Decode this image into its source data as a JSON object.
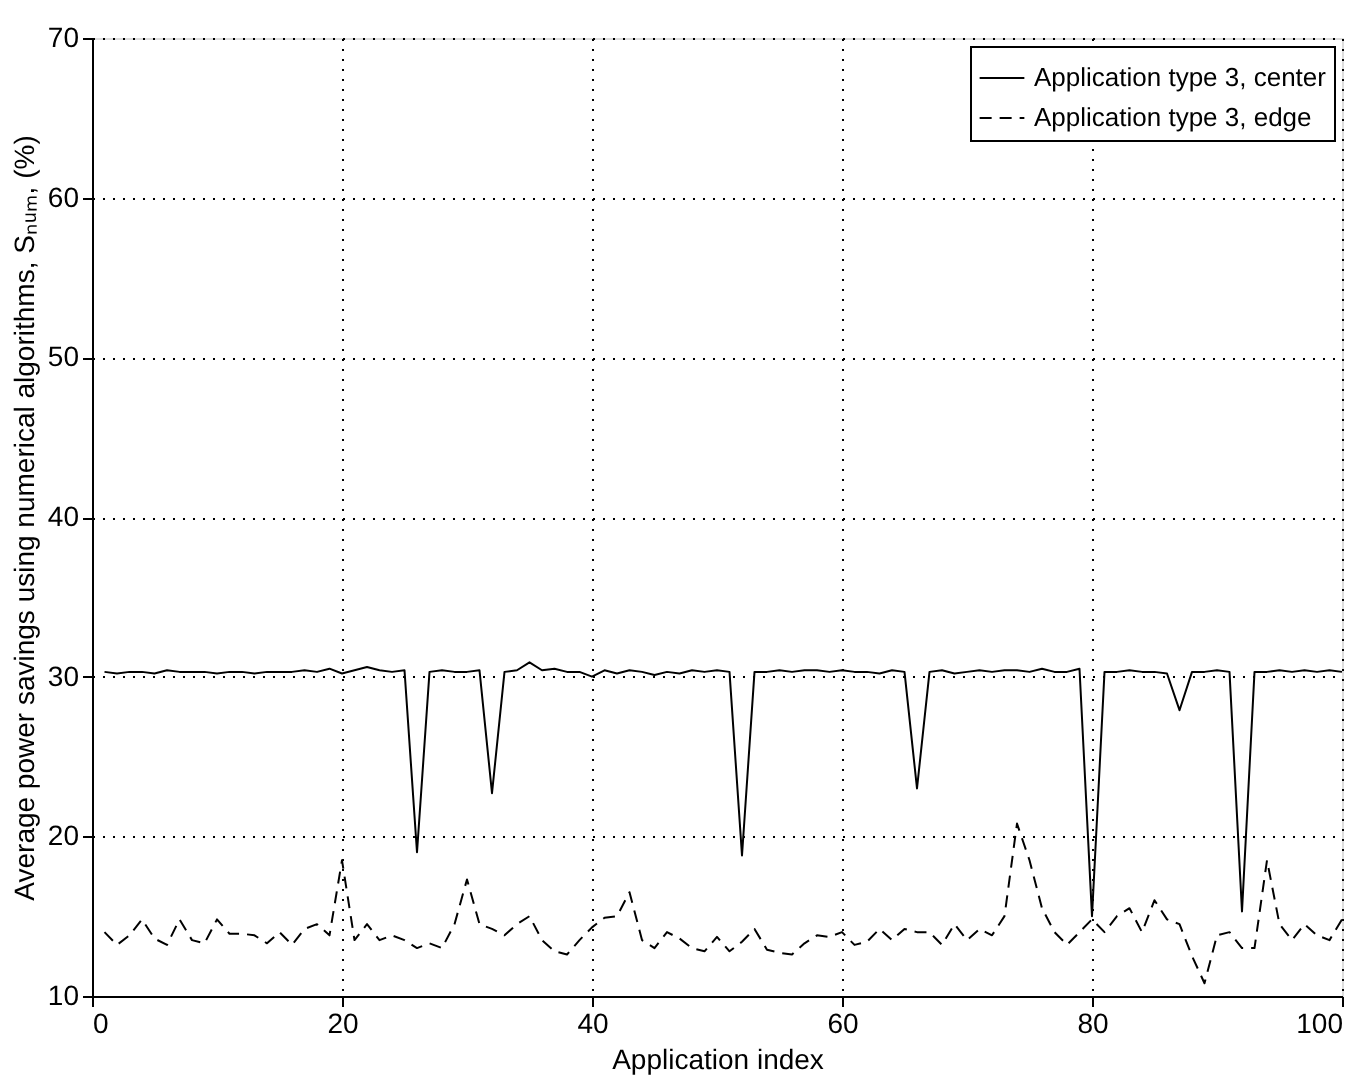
{
  "chart_data": {
    "type": "line",
    "xlabel": "Application index",
    "ylabel": "Average power savings using numerical algorithms, Sₙᵤₘ, (%)",
    "x": [
      1,
      2,
      3,
      4,
      5,
      6,
      7,
      8,
      9,
      10,
      11,
      12,
      13,
      14,
      15,
      16,
      17,
      18,
      19,
      20,
      21,
      22,
      23,
      24,
      25,
      26,
      27,
      28,
      29,
      30,
      31,
      32,
      33,
      34,
      35,
      36,
      37,
      38,
      39,
      40,
      41,
      42,
      43,
      44,
      45,
      46,
      47,
      48,
      49,
      50,
      51,
      52,
      53,
      54,
      55,
      56,
      57,
      58,
      59,
      60,
      61,
      62,
      63,
      64,
      65,
      66,
      67,
      68,
      69,
      70,
      71,
      72,
      73,
      74,
      75,
      76,
      77,
      78,
      79,
      80,
      81,
      82,
      83,
      84,
      85,
      86,
      87,
      88,
      89,
      90,
      91,
      92,
      93,
      94,
      95,
      96,
      97,
      98,
      99,
      100
    ],
    "series": [
      {
        "name": "Application type 3, center",
        "color": "#000000",
        "line_style": "solid",
        "values": [
          30.3,
          30.2,
          30.3,
          30.3,
          30.2,
          30.4,
          30.3,
          30.3,
          30.3,
          30.2,
          30.3,
          30.3,
          30.2,
          30.3,
          30.3,
          30.3,
          30.4,
          30.3,
          30.5,
          30.2,
          30.4,
          30.6,
          30.4,
          30.3,
          30.4,
          19.0,
          30.3,
          30.4,
          30.3,
          30.3,
          30.4,
          22.7,
          30.3,
          30.4,
          30.9,
          30.4,
          30.5,
          30.3,
          30.3,
          30.0,
          30.4,
          30.2,
          30.4,
          30.3,
          30.1,
          30.3,
          30.2,
          30.4,
          30.3,
          30.4,
          30.3,
          18.8,
          30.3,
          30.3,
          30.4,
          30.3,
          30.4,
          30.4,
          30.3,
          30.4,
          30.3,
          30.3,
          30.2,
          30.4,
          30.3,
          23.0,
          30.3,
          30.4,
          30.2,
          30.3,
          30.4,
          30.3,
          30.4,
          30.4,
          30.3,
          30.5,
          30.3,
          30.3,
          30.5,
          15.0,
          30.3,
          30.3,
          30.4,
          30.3,
          30.3,
          30.2,
          27.9,
          30.3,
          30.3,
          30.4,
          30.3,
          15.3,
          30.3,
          30.3,
          30.4,
          30.3,
          30.4,
          30.3,
          30.4,
          30.3
        ]
      },
      {
        "name": "Application type 3, edge",
        "color": "#000000",
        "line_style": "dashed",
        "values": [
          14.0,
          13.2,
          13.8,
          14.8,
          13.6,
          13.2,
          14.8,
          13.5,
          13.3,
          14.8,
          13.9,
          13.9,
          13.8,
          13.3,
          14.0,
          13.2,
          14.2,
          14.5,
          13.8,
          18.5,
          13.5,
          14.5,
          13.5,
          13.8,
          13.5,
          13.0,
          13.3,
          13.0,
          14.5,
          17.3,
          14.5,
          14.2,
          13.8,
          14.5,
          15.0,
          13.5,
          12.8,
          12.6,
          13.5,
          14.3,
          14.9,
          15.0,
          16.5,
          13.5,
          13.0,
          14.0,
          13.6,
          13.0,
          12.8,
          13.7,
          12.8,
          13.4,
          14.2,
          12.9,
          12.7,
          12.6,
          13.3,
          13.8,
          13.7,
          14.0,
          13.2,
          13.4,
          14.2,
          13.5,
          14.2,
          14.0,
          14.0,
          13.2,
          14.5,
          13.5,
          14.2,
          13.8,
          15.0,
          20.8,
          18.5,
          15.5,
          14.0,
          13.2,
          14.0,
          14.8,
          14.0,
          15.0,
          15.5,
          14.0,
          16.0,
          14.8,
          14.5,
          12.5,
          10.8,
          13.8,
          14.0,
          13.0,
          13.0,
          18.5,
          14.5,
          13.5,
          14.5,
          13.8,
          13.5,
          14.8
        ]
      }
    ],
    "xlim": [
      0,
      100
    ],
    "xticks": [
      0,
      20,
      40,
      60,
      80,
      100
    ],
    "ylim": [
      10,
      70
    ],
    "yticks": [
      10,
      20,
      30,
      40,
      50,
      60,
      70
    ],
    "grid": true,
    "legend": "top right",
    "marker": "none"
  }
}
